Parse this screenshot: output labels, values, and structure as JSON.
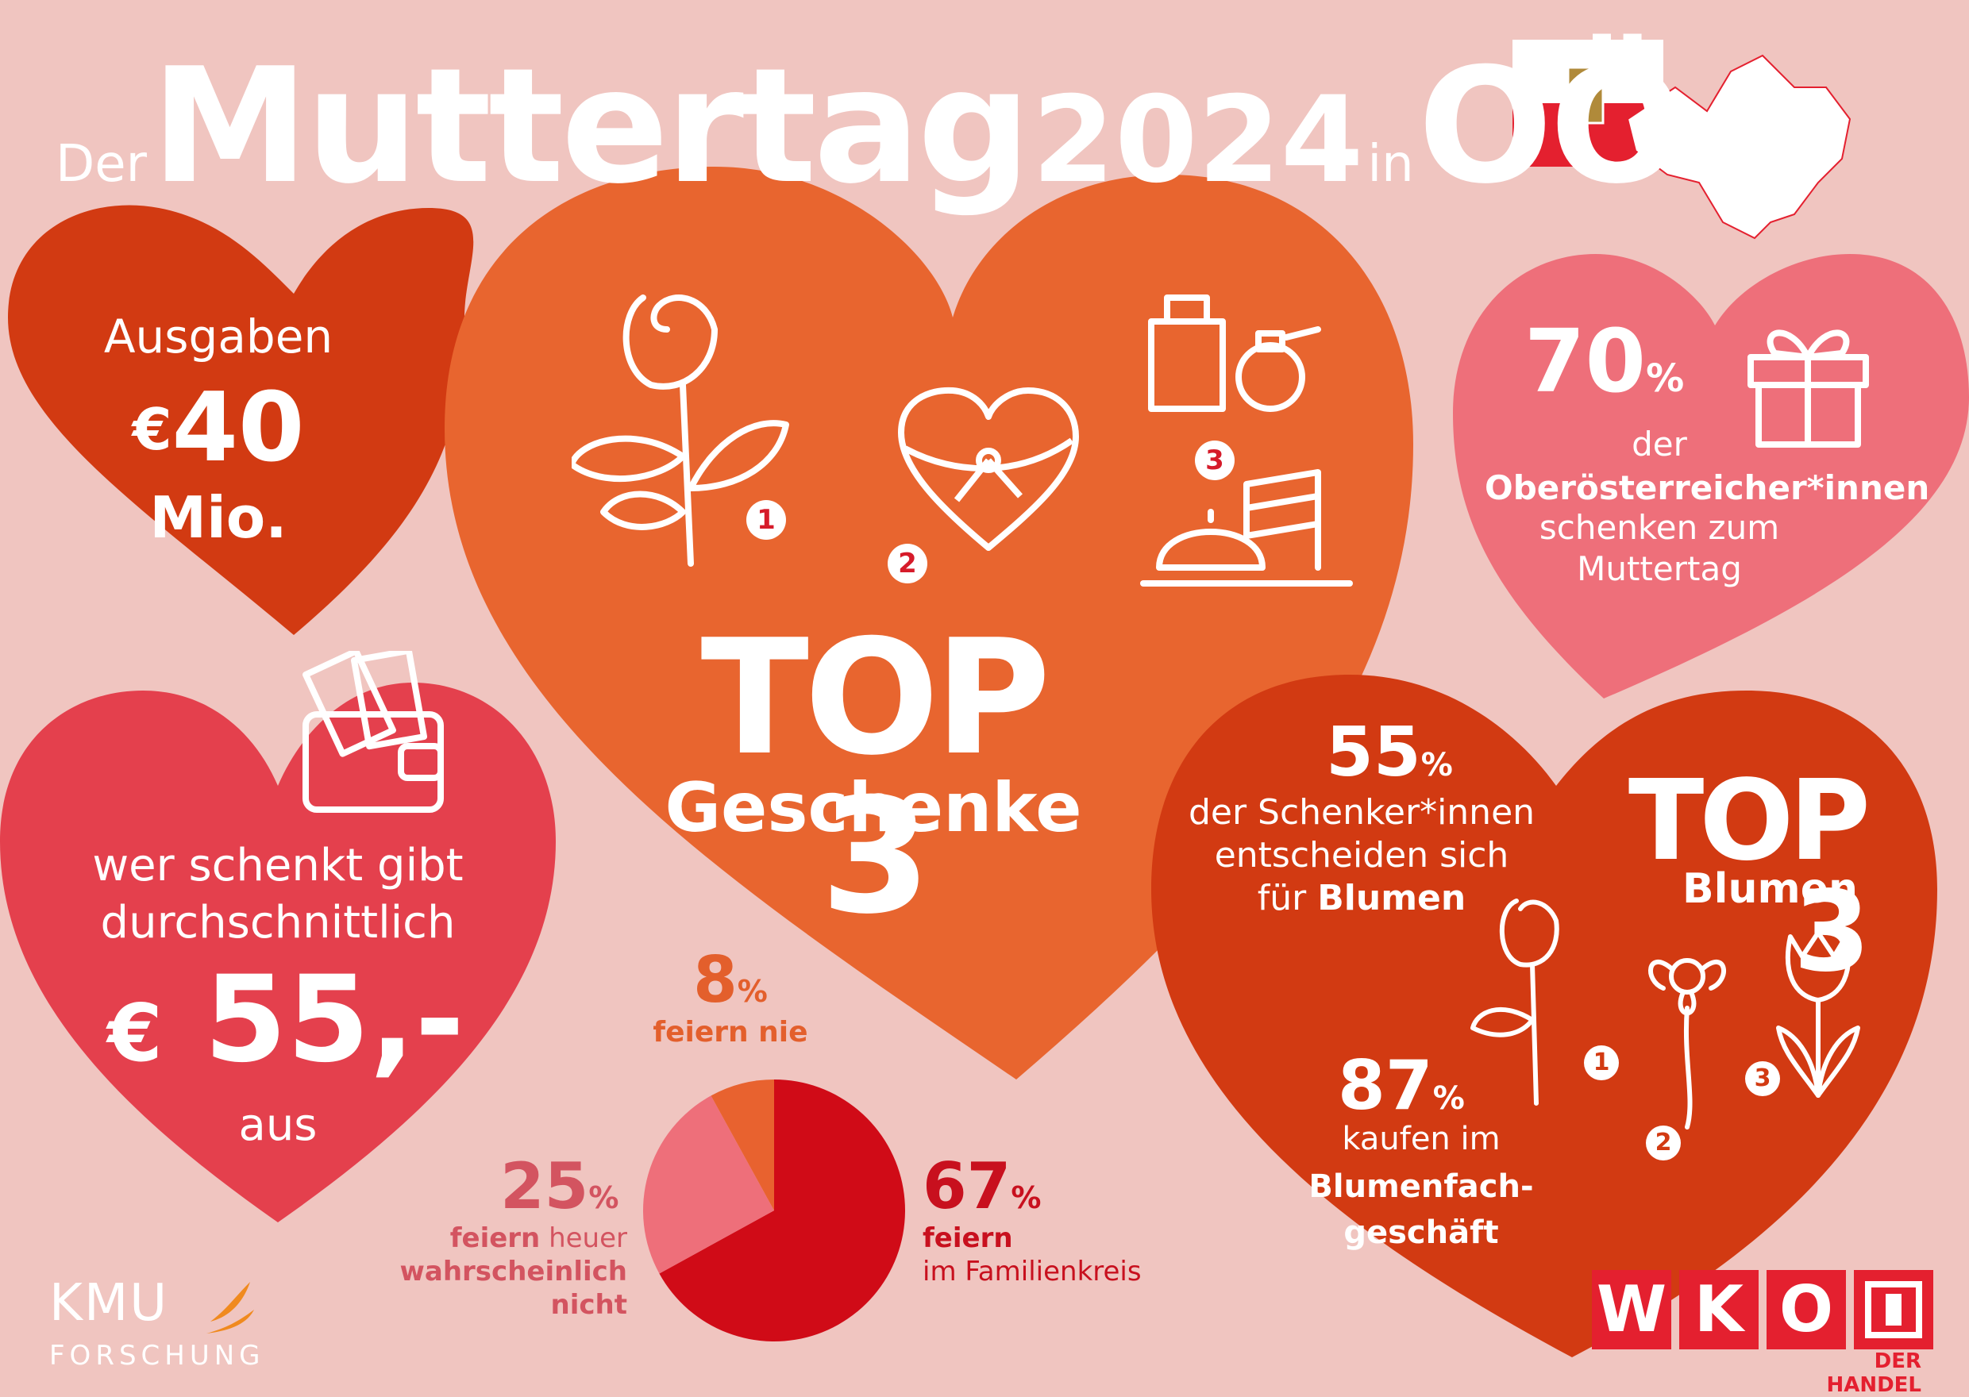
{
  "title": {
    "pre": "Der",
    "main": "Muttertag",
    "year": "2024",
    "mid": "in",
    "region": "OÖ"
  },
  "spending": {
    "label": "Ausgaben",
    "currency": "€",
    "value": "40",
    "unit": "Mio."
  },
  "average": {
    "line1": "wer schenkt gibt",
    "line2": "durchschnittlich",
    "currency": "€",
    "value": "55,-",
    "suffix": "aus",
    "icon": "wallet-icon"
  },
  "top_gifts": {
    "title": "TOP 3",
    "subtitle": "Geschenke",
    "items": [
      {
        "rank": "1",
        "icon": "rose-icon"
      },
      {
        "rank": "2",
        "icon": "heart-gift-box-icon"
      },
      {
        "rank": "3",
        "icon": "perfume-and-dining-icon"
      }
    ]
  },
  "gift_share": {
    "value": "70",
    "unit": "%",
    "line1": "der",
    "line2": "Oberösterreicher*innen",
    "line3": "schenken zum",
    "line4": "Muttertag",
    "icon": "gift-icon"
  },
  "flowers": {
    "share_value": "55",
    "share_unit": "%",
    "share_line1": "der Schenker*innen",
    "share_line2": "entscheiden sich",
    "share_line3_pre": "für",
    "share_line3_bold": "Blumen",
    "top_title": "TOP 3",
    "top_sub": "Blumen",
    "ranks": [
      {
        "rank": "1",
        "icon": "rose-icon"
      },
      {
        "rank": "2",
        "icon": "orchid-icon"
      },
      {
        "rank": "3",
        "icon": "tulip-icon"
      }
    ],
    "shop_value": "87",
    "shop_unit": "%",
    "shop_line1": "kaufen im",
    "shop_line2": "Blumenfach-",
    "shop_line3": "geschäft"
  },
  "celebration": {
    "slices": [
      {
        "value": 67,
        "pct_label": "67",
        "unit": "%",
        "label_bold": "feiern",
        "label_rest": "im Familienkreis",
        "color": "#d00b17"
      },
      {
        "value": 25,
        "pct_label": "25",
        "unit": "%",
        "label_bold": "feiern",
        "label_rest": "heuer",
        "label_line2": "wahrscheinlich",
        "label_line3": "nicht",
        "color": "#ee6f7a"
      },
      {
        "value": 8,
        "pct_label": "8",
        "unit": "%",
        "label_bold": "feiern nie",
        "color": "#e8622f"
      }
    ]
  },
  "logos": {
    "kmu_line1": "KMU",
    "kmu_line2": "FORSCHUNG",
    "wko": [
      "W",
      "K",
      "O"
    ],
    "wko_sub": "DER HANDEL"
  },
  "colors": {
    "background": "#f0c5c0",
    "dark_red": "#d23a12",
    "orange": "#e8652f",
    "pink": "#ee6f7a",
    "red": "#e4404d"
  }
}
